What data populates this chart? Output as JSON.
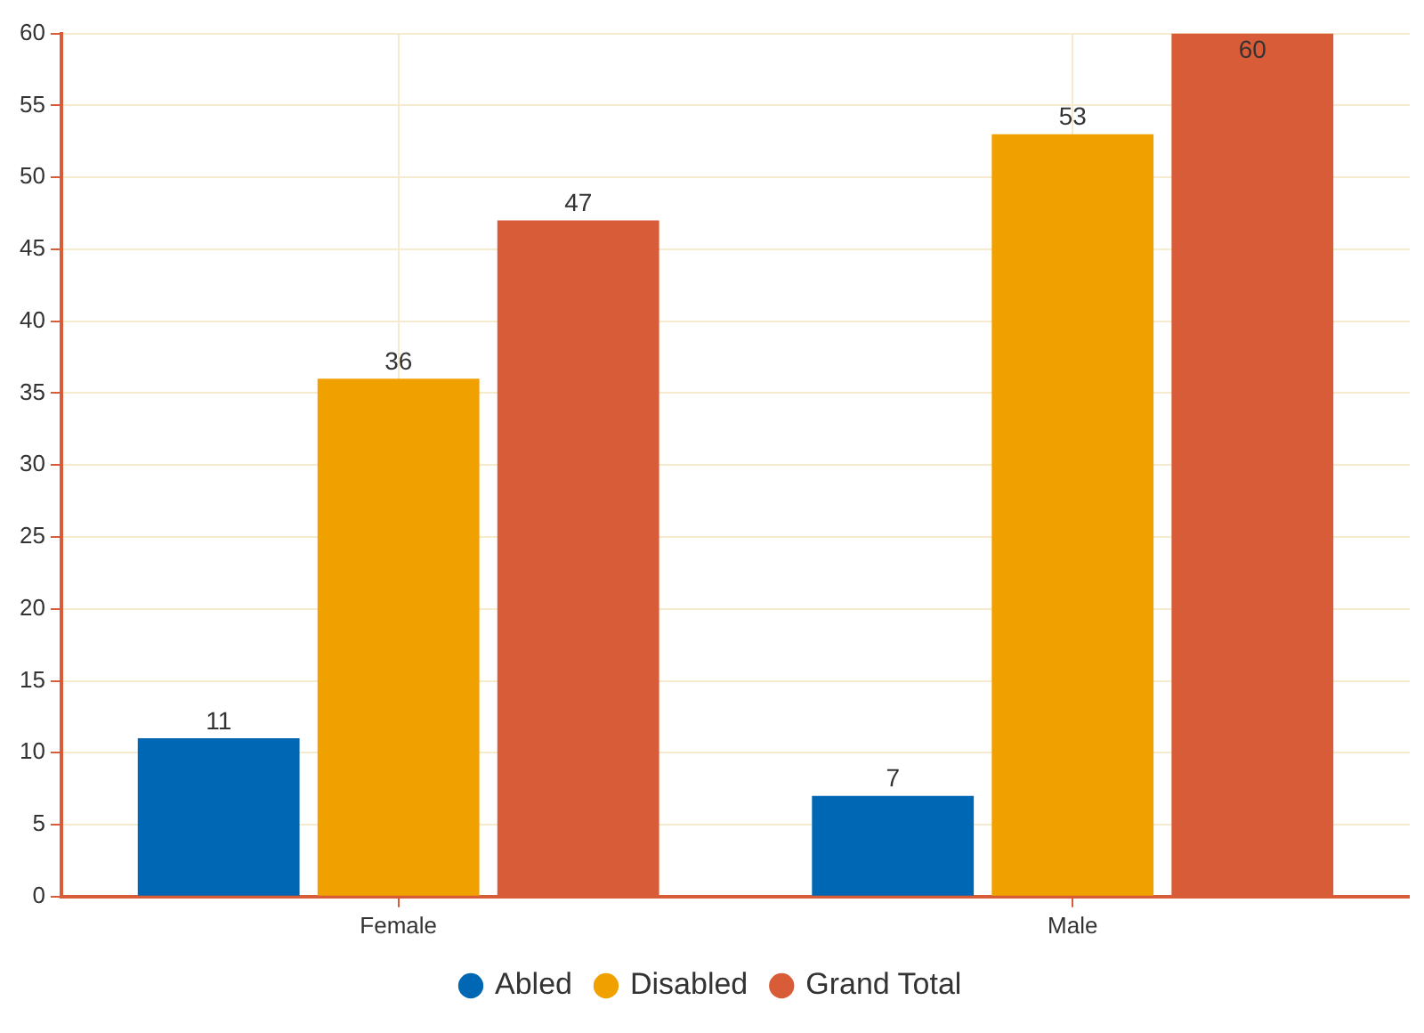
{
  "chart_data": {
    "type": "bar",
    "categories": [
      "Female",
      "Male"
    ],
    "series": [
      {
        "name": "Abled",
        "color": "#0067b4",
        "values": [
          11,
          7
        ]
      },
      {
        "name": "Disabled",
        "color": "#f0a100",
        "values": [
          36,
          53
        ]
      },
      {
        "name": "Grand Total",
        "color": "#d95c38",
        "values": [
          47,
          60
        ]
      }
    ],
    "ylim": [
      0,
      60
    ],
    "yticks": [
      0,
      5,
      10,
      15,
      20,
      25,
      30,
      35,
      40,
      45,
      50,
      55,
      60
    ],
    "grid": true,
    "legend": "bottom",
    "data_labels": true
  }
}
